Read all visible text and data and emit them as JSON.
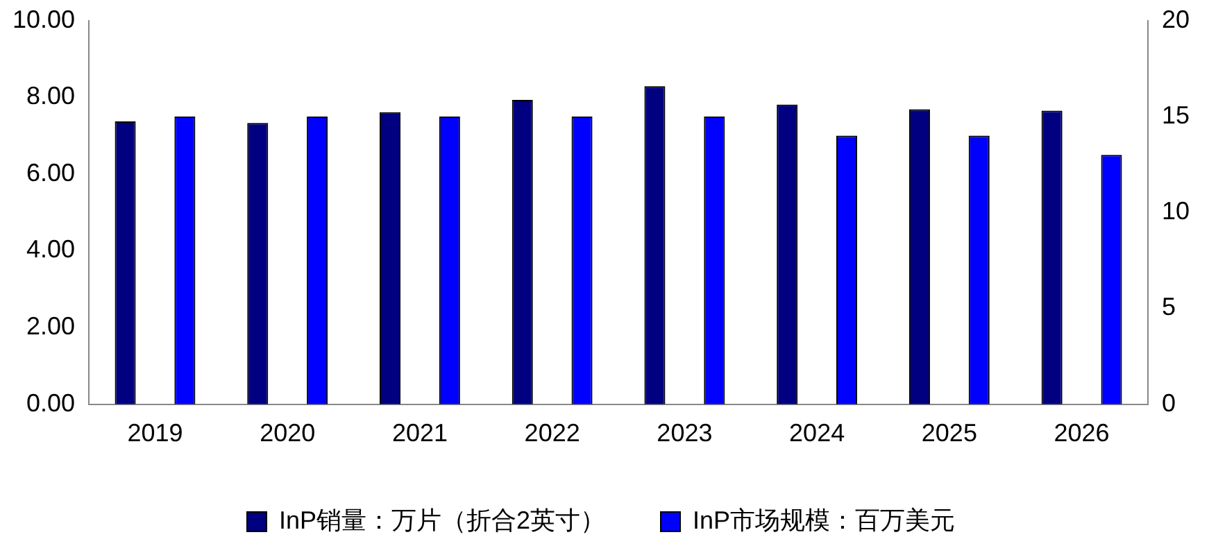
{
  "chart_data": {
    "type": "bar",
    "categories": [
      "2019",
      "2020",
      "2021",
      "2022",
      "2023",
      "2024",
      "2025",
      "2026"
    ],
    "series": [
      {
        "name": "InP销量：万片（折合2英寸）",
        "color": "#000080",
        "values": [
          7.37,
          7.33,
          7.61,
          7.93,
          8.29,
          7.81,
          7.69,
          7.65
        ]
      },
      {
        "name": "InP市场规模：百万美元",
        "color": "#0000ff",
        "axis": "y2",
        "values": [
          15,
          15,
          15,
          15,
          15,
          14,
          14,
          13
        ]
      }
    ],
    "ylim": [
      0,
      10
    ],
    "yticks": [
      {
        "value": 0,
        "label": "0.00"
      },
      {
        "value": 2,
        "label": "2.00"
      },
      {
        "value": 4,
        "label": "4.00"
      },
      {
        "value": 6,
        "label": "6.00"
      },
      {
        "value": 8,
        "label": "8.00"
      },
      {
        "value": 10,
        "label": "10.00"
      }
    ],
    "y2lim": [
      0,
      20
    ],
    "y2ticks": [
      0,
      5,
      10,
      15,
      20
    ],
    "grid": false,
    "legend": "bottom"
  }
}
